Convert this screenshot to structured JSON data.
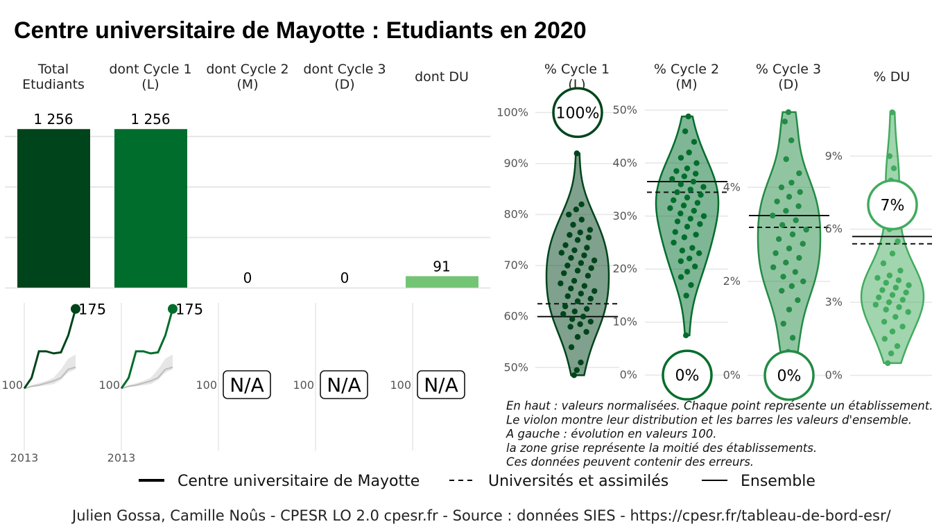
{
  "title": "Centre universitaire de Mayotte  :  Etudiants en 2020",
  "colors": {
    "total": "#00441b",
    "cycle1": "#006d2c",
    "cycle2": "#238b45",
    "cycle3": "#238b45",
    "du": "#74c476",
    "grid": "#e6e6e6",
    "trend_grey": "#bdbdbd"
  },
  "columns": [
    {
      "key": "total",
      "header": [
        "Total",
        "Etudiants"
      ]
    },
    {
      "key": "cycle1",
      "header": [
        "dont Cycle 1",
        "(L)"
      ]
    },
    {
      "key": "cycle2",
      "header": [
        "dont Cycle 2",
        "(M)"
      ]
    },
    {
      "key": "cycle3",
      "header": [
        "dont Cycle 3",
        "(D)"
      ]
    },
    {
      "key": "du",
      "header": [
        "dont DU"
      ]
    }
  ],
  "chart_data": [
    {
      "type": "bar",
      "categories": [
        "Total Etudiants",
        "dont Cycle 1 (L)",
        "dont Cycle 2 (M)",
        "dont Cycle 3 (D)",
        "dont DU"
      ],
      "values": [
        1256,
        1256,
        0,
        0,
        91
      ],
      "labels": [
        "1 256",
        "1 256",
        "0",
        "0",
        "91"
      ],
      "ylim": [
        0,
        1400
      ],
      "grid": true
    },
    {
      "type": "line",
      "title": "Évolution en valeurs 100",
      "x": [
        2013,
        2014,
        2015,
        2016,
        2017,
        2018,
        2019,
        2020
      ],
      "series": [
        {
          "key": "total",
          "values": [
            100,
            110,
            135,
            135,
            133,
            134,
            150,
            175
          ],
          "end_label": "175"
        },
        {
          "key": "cycle1",
          "values": [
            100,
            110,
            135,
            135,
            133,
            134,
            150,
            175
          ],
          "end_label": "175"
        },
        {
          "key": "cycle2",
          "na": "N/A"
        },
        {
          "key": "cycle3",
          "na": "N/A"
        },
        {
          "key": "du",
          "na": "N/A"
        }
      ],
      "band": {
        "label": "la zone grise représente la moitié des établissements",
        "low": [
          100,
          101,
          102,
          103,
          104,
          108,
          115,
          118
        ],
        "high": [
          100,
          103,
          105,
          107,
          110,
          118,
          128,
          132
        ],
        "median": [
          100,
          102,
          103,
          105,
          107,
          110,
          118,
          120
        ]
      },
      "base_label": "100",
      "xtick_label": "2013"
    },
    {
      "type": "violin",
      "panel": "cycle1",
      "header": [
        "% Cycle 1",
        "(L)"
      ],
      "ticks": [
        "50%",
        "60%",
        "70%",
        "80%",
        "90%",
        "100%"
      ],
      "tick_values": [
        50,
        60,
        70,
        80,
        90,
        100
      ],
      "ylim": [
        48,
        101
      ],
      "value": 100,
      "value_label": "100%",
      "ensemble": 60,
      "universites": 62.5,
      "points": [
        48.5,
        49.5,
        51,
        54,
        56,
        57,
        58,
        58.5,
        59,
        59.5,
        60,
        60.5,
        61,
        61.5,
        62,
        63,
        63.5,
        64,
        64.5,
        65,
        65.5,
        66,
        66.5,
        67,
        68,
        68.5,
        69,
        69.5,
        70,
        70.5,
        71,
        71.5,
        72,
        72.5,
        73,
        73.5,
        74,
        75,
        75.5,
        76,
        76.5,
        77,
        78,
        79,
        80,
        81,
        82,
        92
      ]
    },
    {
      "type": "violin",
      "panel": "cycle2",
      "header": [
        "% Cycle 2",
        "(M)"
      ],
      "ticks": [
        "0%",
        "10%",
        "20%",
        "30%",
        "40%",
        "50%"
      ],
      "tick_values": [
        0,
        10,
        20,
        30,
        40,
        50
      ],
      "ylim": [
        -0.5,
        50.5
      ],
      "value": 0,
      "value_label": "0%",
      "ensemble": 36.5,
      "universites": 34.5,
      "points": [
        7.5,
        15,
        17,
        18.5,
        19.5,
        20.5,
        21.5,
        22,
        23,
        23.5,
        24,
        25,
        26,
        26.5,
        27,
        28,
        28.5,
        29,
        29.5,
        30,
        30.5,
        31,
        31.5,
        32,
        32.5,
        33,
        33.5,
        34,
        34.5,
        35,
        35.5,
        36,
        36.5,
        37,
        37.5,
        38,
        38.5,
        39,
        40,
        41,
        42,
        44,
        46,
        48.8
      ]
    },
    {
      "type": "violin",
      "panel": "cycle3",
      "header": [
        "% Cycle 3",
        "(D)"
      ],
      "ticks": [
        "0%",
        "2%",
        "4%"
      ],
      "tick_values": [
        0,
        2,
        4
      ],
      "ylim": [
        -0.05,
        5.7
      ],
      "value": 0,
      "value_label": "0%",
      "ensemble": 3.4,
      "universites": 3.15,
      "points": [
        0.15,
        0.5,
        0.8,
        1.1,
        1.4,
        1.6,
        1.8,
        1.9,
        2.0,
        2.1,
        2.2,
        2.3,
        2.4,
        2.5,
        2.6,
        2.7,
        2.8,
        2.9,
        3.0,
        3.1,
        3.2,
        3.3,
        3.4,
        3.5,
        3.6,
        3.7,
        3.8,
        3.9,
        4.0,
        4.1,
        4.3,
        4.6,
        5.0,
        5.4,
        5.6
      ]
    },
    {
      "type": "violin",
      "panel": "du",
      "header": [
        "% DU"
      ],
      "ticks": [
        "0%",
        "3%",
        "6%",
        "9%"
      ],
      "tick_values": [
        0,
        3,
        6,
        9
      ],
      "ylim": [
        -0.1,
        11
      ],
      "value": 7,
      "value_label": "7%",
      "ensemble": 5.7,
      "universites": 5.4,
      "points": [
        0.5,
        0.9,
        1.2,
        1.5,
        1.8,
        2.0,
        2.2,
        2.4,
        2.6,
        2.7,
        2.8,
        2.9,
        3.0,
        3.1,
        3.2,
        3.3,
        3.4,
        3.5,
        3.6,
        3.7,
        3.8,
        3.9,
        4.0,
        4.1,
        4.3,
        4.6,
        5.0,
        5.5,
        6.0,
        6.5,
        7.5,
        8.0,
        8.5,
        9.0,
        10.8
      ]
    }
  ],
  "notes": [
    "En haut : valeurs normalisées. Chaque point représente un établissement.",
    "Le violon montre leur distribution et les barres les valeurs d'ensemble.",
    "A gauche : évolution en valeurs 100.",
    "la zone grise représente la moitié des établissements.",
    "Ces données peuvent contenir des erreurs."
  ],
  "legend": [
    {
      "label": "Centre universitaire de Mayotte",
      "style": "thick"
    },
    {
      "label": "Universités et assimilés",
      "style": "dashed"
    },
    {
      "label": "Ensemble",
      "style": "thin"
    }
  ],
  "footer": "Julien Gossa, Camille Noûs - CPESR LO 2.0 cpesr.fr - Source : données SIES - https://cpesr.fr/tableau-de-bord-esr/"
}
